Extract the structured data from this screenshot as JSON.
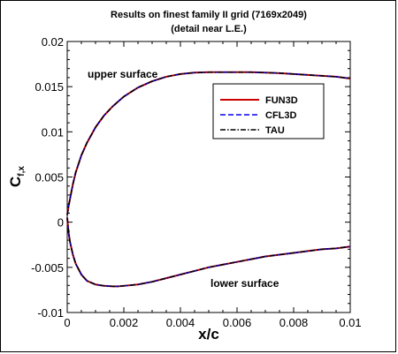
{
  "chart_data": {
    "type": "line",
    "title": "Results on finest family II grid (7169x2049)",
    "subtitle": "(detail near L.E.)",
    "xlabel": "x/c",
    "ylabel": "C",
    "ylabel_sub": "f,x",
    "xlim": [
      0,
      0.01
    ],
    "ylim": [
      -0.01,
      0.02
    ],
    "x_ticks": [
      "0",
      "0.002",
      "0.004",
      "0.006",
      "0.008",
      "0.01"
    ],
    "y_ticks": [
      "-0.01",
      "-0.005",
      "0",
      "0.005",
      "0.01",
      "0.015",
      "0.02"
    ],
    "grid": false,
    "legend_position": "right",
    "annotations": {
      "upper": "upper surface",
      "lower": "lower surface"
    },
    "series": [
      {
        "name": "FUN3D",
        "color": "#cc0000",
        "dash": "solid"
      },
      {
        "name": "CFL3D",
        "color": "#0000ee",
        "dash": "dashed"
      },
      {
        "name": "TAU",
        "color": "#000000",
        "dash": "dashdot"
      }
    ],
    "curves": {
      "upper": {
        "x": [
          0,
          5e-05,
          0.0001,
          0.0002,
          0.0003,
          0.0005,
          0.0007,
          0.001,
          0.0013,
          0.0016,
          0.002,
          0.0025,
          0.003,
          0.0035,
          0.004,
          0.0045,
          0.005,
          0.0055,
          0.006,
          0.0065,
          0.007,
          0.0075,
          0.008,
          0.0085,
          0.009,
          0.0095,
          0.01
        ],
        "y": [
          0.0008,
          0.0018,
          0.0026,
          0.0042,
          0.0055,
          0.0074,
          0.0088,
          0.0105,
          0.0118,
          0.0128,
          0.0139,
          0.0149,
          0.0156,
          0.0161,
          0.0164,
          0.01655,
          0.0166,
          0.0166,
          0.0166,
          0.0166,
          0.01655,
          0.0165,
          0.0164,
          0.0163,
          0.0162,
          0.0161,
          0.0159
        ]
      },
      "lower": {
        "x": [
          0,
          5e-05,
          0.0001,
          0.0002,
          0.0003,
          0.0005,
          0.0007,
          0.001,
          0.0013,
          0.0016,
          0.0018,
          0.002,
          0.0025,
          0.003,
          0.0035,
          0.004,
          0.0045,
          0.005,
          0.0055,
          0.006,
          0.0065,
          0.007,
          0.0075,
          0.008,
          0.0085,
          0.009,
          0.0095,
          0.01
        ],
        "y": [
          0.0005,
          -0.0012,
          -0.0022,
          -0.0036,
          -0.0046,
          -0.0058,
          -0.0065,
          -0.0069,
          -0.00705,
          -0.0071,
          -0.0071,
          -0.00705,
          -0.0069,
          -0.0066,
          -0.0062,
          -0.0058,
          -0.0054,
          -0.005,
          -0.0047,
          -0.0044,
          -0.0041,
          -0.0038,
          -0.0036,
          -0.0034,
          -0.0032,
          -0.003,
          -0.0029,
          -0.0027
        ]
      }
    }
  }
}
